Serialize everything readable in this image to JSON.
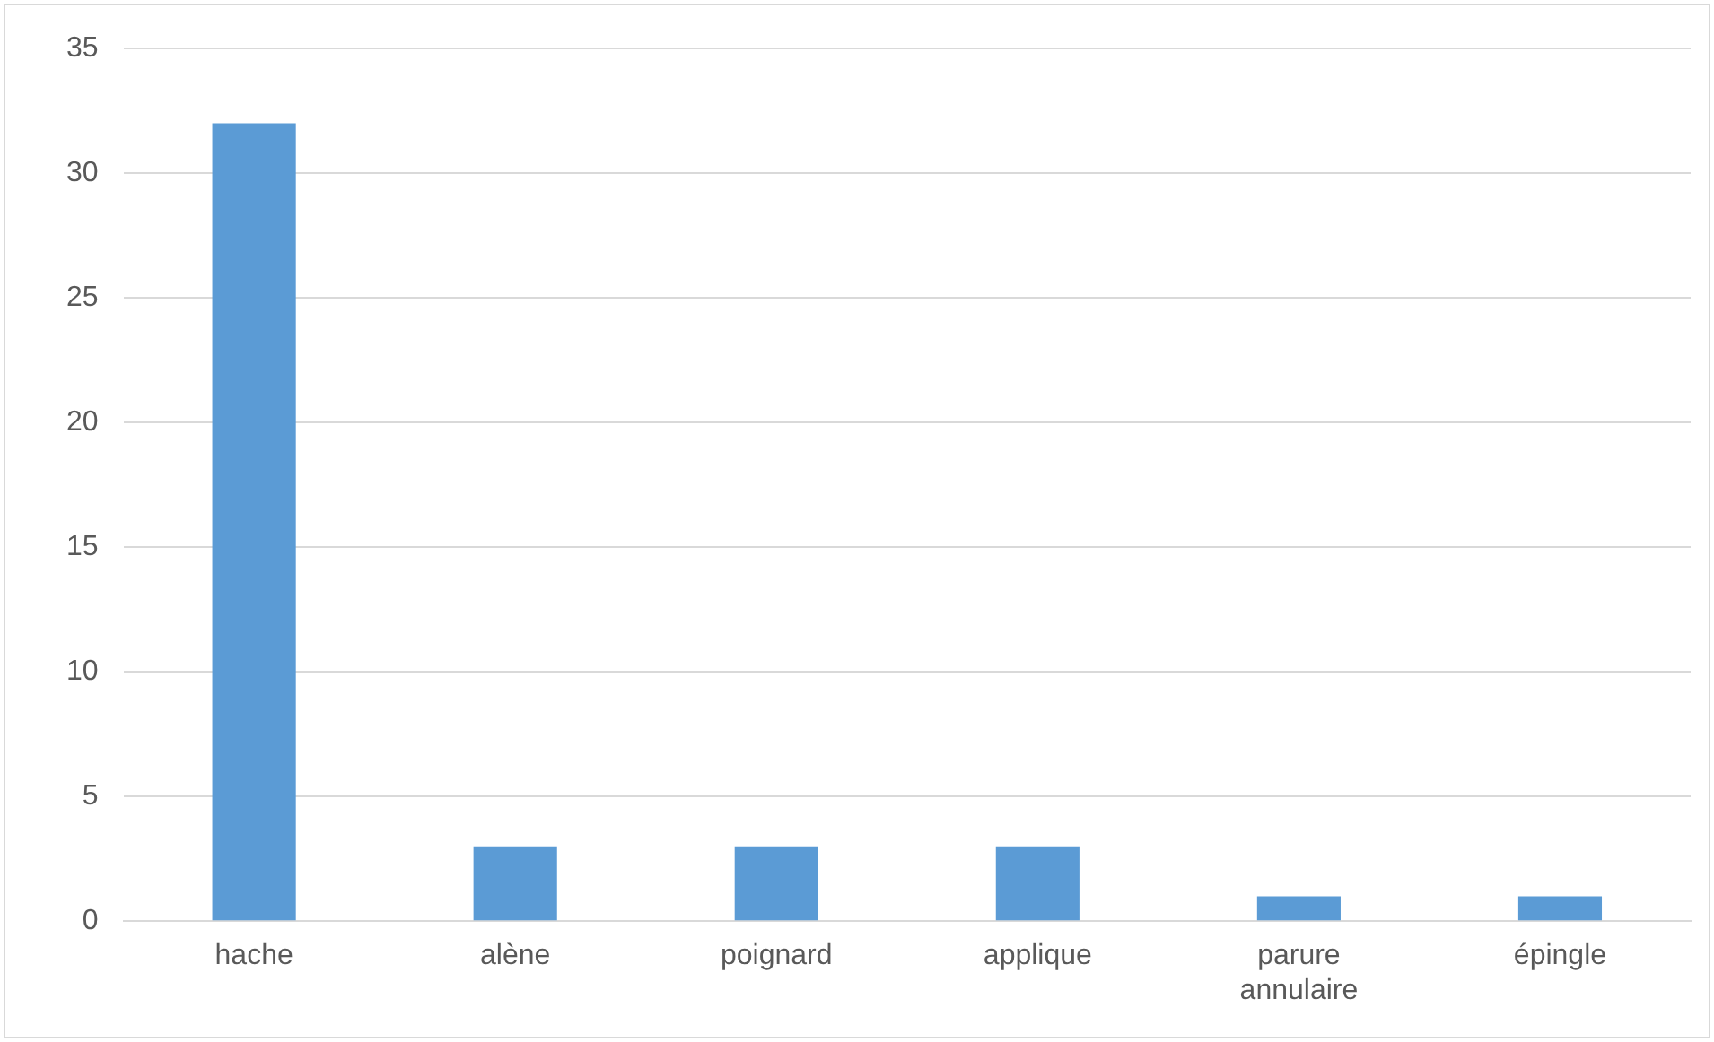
{
  "chart_data": {
    "type": "bar",
    "categories": [
      "hache",
      "alène",
      "poignard",
      "applique",
      "parure annulaire",
      "épingle"
    ],
    "values": [
      32,
      3,
      3,
      3,
      1,
      1
    ],
    "color": "#5b9bd5",
    "ylim": [
      0,
      35
    ],
    "yticks": [
      0,
      5,
      10,
      15,
      20,
      25,
      30,
      35
    ],
    "grid": "y",
    "legend": false
  }
}
